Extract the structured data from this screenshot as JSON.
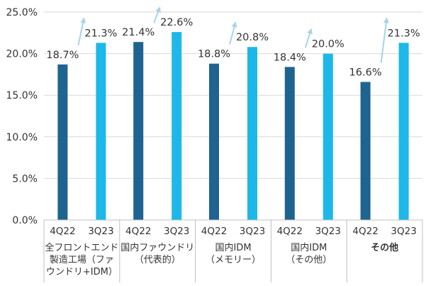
{
  "chart_data": {
    "type": "bar",
    "title": "",
    "xlabel": "",
    "ylabel": "",
    "ylim": [
      0,
      25
    ],
    "yticks": [
      "0.0%",
      "5.0%",
      "10.0%",
      "15.0%",
      "20.0%",
      "25.0%"
    ],
    "ytick_values": [
      0,
      5,
      10,
      15,
      20,
      25
    ],
    "grid": "horizontal",
    "legend": "none",
    "periods": [
      "4Q22",
      "3Q23"
    ],
    "categories": [
      {
        "lines": [
          "全フロントエンド",
          "製造工場（ファ",
          "ウンドリ+IDM）"
        ],
        "bold": false
      },
      {
        "lines": [
          "国内ファウンドリ",
          "（代表的）"
        ],
        "bold": false
      },
      {
        "lines": [
          "国内IDM",
          "（メモリー）"
        ],
        "bold": false
      },
      {
        "lines": [
          "国内IDM",
          "（その他）"
        ],
        "bold": false
      },
      {
        "lines": [
          "その他"
        ],
        "bold": true
      }
    ],
    "series": [
      {
        "name": "4Q22",
        "color": "#1f6390",
        "values": [
          18.7,
          21.4,
          18.8,
          18.4,
          16.6
        ],
        "labels": [
          "18.7%",
          "21.4%",
          "18.8%",
          "18.4%",
          "16.6%"
        ]
      },
      {
        "name": "3Q23",
        "color": "#1db8e8",
        "values": [
          21.3,
          22.6,
          20.8,
          20.0,
          21.3
        ],
        "labels": [
          "21.3%",
          "22.6%",
          "20.8%",
          "20.0%",
          "21.3%"
        ]
      }
    ],
    "annotations": "arrows from 4Q22 to 3Q23 labels",
    "arrow_color": "#a9d3e6",
    "grid_color": "#d9d9d9",
    "axis_color": "#bfbfbf"
  }
}
